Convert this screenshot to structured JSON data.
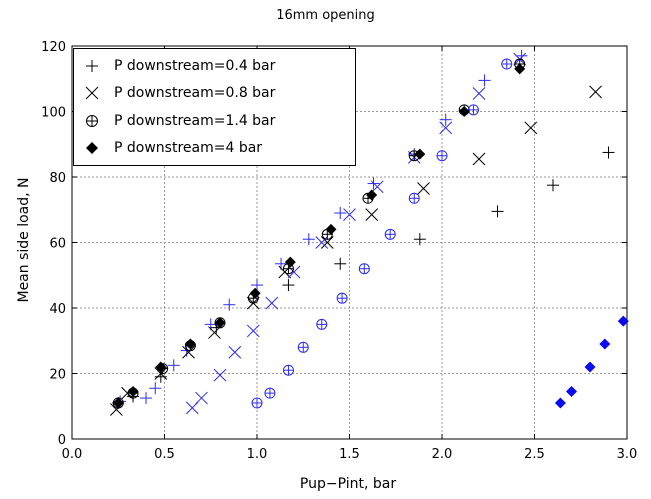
{
  "chart_data": {
    "type": "scatter",
    "title": "16mm opening",
    "xlabel": "Pup−Pint, bar",
    "ylabel": "Mean side load, N",
    "xlim": [
      0,
      3
    ],
    "ylim": [
      0,
      120
    ],
    "xticks": [
      "0.0",
      "0.5",
      "1.0",
      "1.5",
      "2.0",
      "2.5",
      "3.0"
    ],
    "yticks": [
      "0",
      "20",
      "40",
      "60",
      "80",
      "100",
      "120"
    ],
    "grid": true,
    "legend_position": "top-left",
    "series": [
      {
        "name": "P downstream=0.4 bar",
        "marker": "plus",
        "points": [
          {
            "x": 0.25,
            "y": 11,
            "c": "black"
          },
          {
            "x": 0.33,
            "y": 13,
            "c": "black"
          },
          {
            "x": 0.48,
            "y": 19,
            "c": "black"
          },
          {
            "x": 0.78,
            "y": 34,
            "c": "black"
          },
          {
            "x": 1.17,
            "y": 47,
            "c": "black"
          },
          {
            "x": 1.45,
            "y": 53.5,
            "c": "black"
          },
          {
            "x": 1.88,
            "y": 61,
            "c": "black"
          },
          {
            "x": 2.3,
            "y": 69.5,
            "c": "black"
          },
          {
            "x": 2.6,
            "y": 77.5,
            "c": "black"
          },
          {
            "x": 2.9,
            "y": 87.5,
            "c": "black"
          },
          {
            "x": 0.26,
            "y": 11.5,
            "c": "blue"
          },
          {
            "x": 0.4,
            "y": 12.5,
            "c": "blue"
          },
          {
            "x": 0.45,
            "y": 15.5,
            "c": "blue"
          },
          {
            "x": 0.55,
            "y": 22.5,
            "c": "blue"
          },
          {
            "x": 0.62,
            "y": 27,
            "c": "blue"
          },
          {
            "x": 0.75,
            "y": 35,
            "c": "blue"
          },
          {
            "x": 0.85,
            "y": 41,
            "c": "blue"
          },
          {
            "x": 1.0,
            "y": 47,
            "c": "blue"
          },
          {
            "x": 1.13,
            "y": 53.5,
            "c": "blue"
          },
          {
            "x": 1.28,
            "y": 61,
            "c": "blue"
          },
          {
            "x": 1.45,
            "y": 69,
            "c": "blue"
          },
          {
            "x": 1.63,
            "y": 78,
            "c": "blue"
          },
          {
            "x": 1.85,
            "y": 87,
            "c": "blue"
          },
          {
            "x": 2.02,
            "y": 97.5,
            "c": "blue"
          },
          {
            "x": 2.23,
            "y": 109.5,
            "c": "blue"
          },
          {
            "x": 2.43,
            "y": 117,
            "c": "blue"
          }
        ]
      },
      {
        "name": "P downstream=0.8 bar",
        "marker": "cross",
        "points": [
          {
            "x": 0.24,
            "y": 9,
            "c": "black"
          },
          {
            "x": 0.3,
            "y": 14,
            "c": "black"
          },
          {
            "x": 0.48,
            "y": 20,
            "c": "black"
          },
          {
            "x": 0.63,
            "y": 26.5,
            "c": "black"
          },
          {
            "x": 0.77,
            "y": 32.5,
            "c": "black"
          },
          {
            "x": 0.98,
            "y": 41.5,
            "c": "black"
          },
          {
            "x": 1.15,
            "y": 51,
            "c": "black"
          },
          {
            "x": 1.38,
            "y": 60,
            "c": "black"
          },
          {
            "x": 1.62,
            "y": 68.5,
            "c": "black"
          },
          {
            "x": 1.9,
            "y": 76.5,
            "c": "black"
          },
          {
            "x": 2.2,
            "y": 85.5,
            "c": "black"
          },
          {
            "x": 2.48,
            "y": 95,
            "c": "black"
          },
          {
            "x": 2.83,
            "y": 106,
            "c": "black"
          },
          {
            "x": 0.65,
            "y": 9.5,
            "c": "blue"
          },
          {
            "x": 0.7,
            "y": 12.5,
            "c": "blue"
          },
          {
            "x": 0.8,
            "y": 19.5,
            "c": "blue"
          },
          {
            "x": 0.88,
            "y": 26.5,
            "c": "blue"
          },
          {
            "x": 0.98,
            "y": 33,
            "c": "blue"
          },
          {
            "x": 1.08,
            "y": 41.5,
            "c": "blue"
          },
          {
            "x": 1.2,
            "y": 51,
            "c": "blue"
          },
          {
            "x": 1.35,
            "y": 60,
            "c": "blue"
          },
          {
            "x": 1.5,
            "y": 68.5,
            "c": "blue"
          },
          {
            "x": 1.65,
            "y": 77,
            "c": "blue"
          },
          {
            "x": 1.85,
            "y": 86,
            "c": "blue"
          },
          {
            "x": 2.02,
            "y": 95,
            "c": "blue"
          },
          {
            "x": 2.2,
            "y": 105.5,
            "c": "blue"
          },
          {
            "x": 2.42,
            "y": 116,
            "c": "blue"
          }
        ]
      },
      {
        "name": "P downstream=1.4 bar",
        "marker": "circle-plus",
        "points": [
          {
            "x": 0.25,
            "y": 11,
            "c": "black"
          },
          {
            "x": 0.33,
            "y": 14,
            "c": "black"
          },
          {
            "x": 0.49,
            "y": 21.5,
            "c": "black"
          },
          {
            "x": 0.64,
            "y": 28.5,
            "c": "black"
          },
          {
            "x": 0.8,
            "y": 35.5,
            "c": "black"
          },
          {
            "x": 0.98,
            "y": 43,
            "c": "black"
          },
          {
            "x": 1.17,
            "y": 52,
            "c": "black"
          },
          {
            "x": 1.38,
            "y": 62.5,
            "c": "black"
          },
          {
            "x": 1.6,
            "y": 73.5,
            "c": "black"
          },
          {
            "x": 1.85,
            "y": 86.5,
            "c": "black"
          },
          {
            "x": 2.12,
            "y": 100.5,
            "c": "black"
          },
          {
            "x": 2.42,
            "y": 114.5,
            "c": "black"
          },
          {
            "x": 1.0,
            "y": 11,
            "c": "blue"
          },
          {
            "x": 1.07,
            "y": 14,
            "c": "blue"
          },
          {
            "x": 1.17,
            "y": 21,
            "c": "blue"
          },
          {
            "x": 1.25,
            "y": 28,
            "c": "blue"
          },
          {
            "x": 1.35,
            "y": 35,
            "c": "blue"
          },
          {
            "x": 1.46,
            "y": 43,
            "c": "blue"
          },
          {
            "x": 1.58,
            "y": 52,
            "c": "blue"
          },
          {
            "x": 1.72,
            "y": 62.5,
            "c": "blue"
          },
          {
            "x": 1.85,
            "y": 73.5,
            "c": "blue"
          },
          {
            "x": 2.0,
            "y": 86.5,
            "c": "blue"
          },
          {
            "x": 2.17,
            "y": 100.5,
            "c": "blue"
          },
          {
            "x": 2.35,
            "y": 114.5,
            "c": "blue"
          }
        ]
      },
      {
        "name": "P downstream=4 bar",
        "marker": "diamond",
        "points": [
          {
            "x": 0.25,
            "y": 11,
            "c": "black"
          },
          {
            "x": 0.33,
            "y": 14.5,
            "c": "black"
          },
          {
            "x": 0.48,
            "y": 22,
            "c": "black"
          },
          {
            "x": 0.64,
            "y": 29,
            "c": "black"
          },
          {
            "x": 0.8,
            "y": 35.5,
            "c": "black"
          },
          {
            "x": 0.99,
            "y": 44.5,
            "c": "black"
          },
          {
            "x": 1.18,
            "y": 54,
            "c": "black"
          },
          {
            "x": 1.4,
            "y": 64,
            "c": "black"
          },
          {
            "x": 1.62,
            "y": 74.5,
            "c": "black"
          },
          {
            "x": 1.88,
            "y": 87,
            "c": "black"
          },
          {
            "x": 2.12,
            "y": 100,
            "c": "black"
          },
          {
            "x": 2.42,
            "y": 113,
            "c": "black"
          },
          {
            "x": 2.64,
            "y": 11,
            "c": "blue"
          },
          {
            "x": 2.7,
            "y": 14.5,
            "c": "blue"
          },
          {
            "x": 2.8,
            "y": 22,
            "c": "blue"
          },
          {
            "x": 2.88,
            "y": 29,
            "c": "blue"
          },
          {
            "x": 2.98,
            "y": 36,
            "c": "blue"
          }
        ]
      }
    ]
  },
  "colors": {
    "black": "#000000",
    "blue": "#2c2cf0",
    "blue_diamond": "#0a0aee",
    "grid": "#999999"
  }
}
